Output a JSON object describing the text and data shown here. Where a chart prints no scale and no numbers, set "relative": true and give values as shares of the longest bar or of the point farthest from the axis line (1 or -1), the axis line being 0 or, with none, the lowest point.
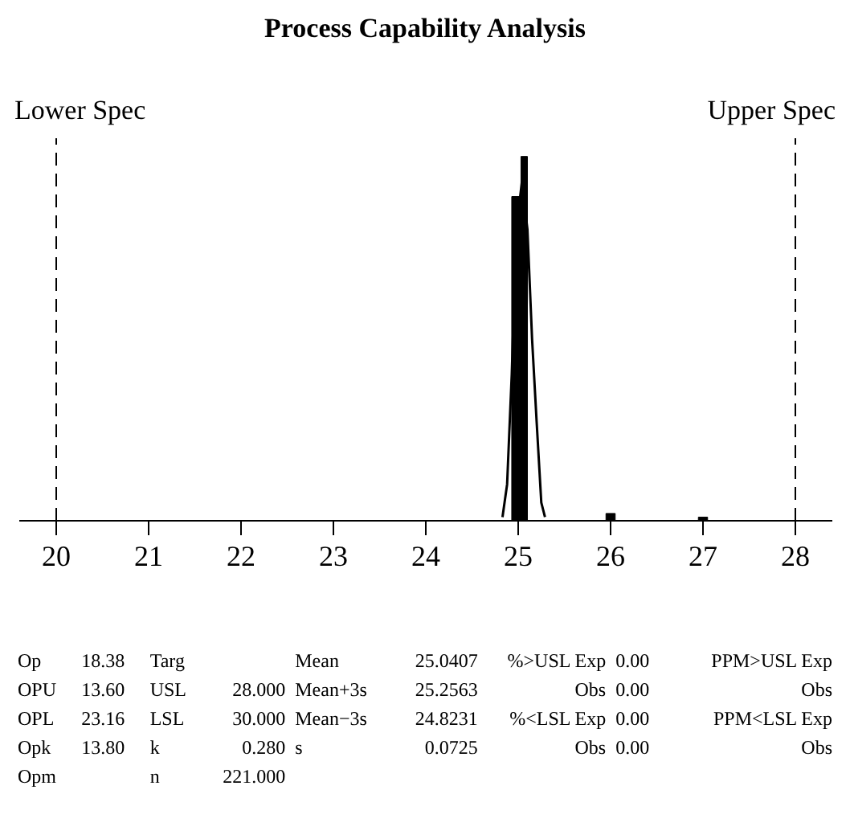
{
  "chart_data": {
    "type": "histogram",
    "title": "Process Capability Analysis",
    "relative": true,
    "xlim": [
      19.6,
      28.4
    ],
    "xticks": [
      20,
      21,
      22,
      23,
      24,
      25,
      26,
      27,
      28
    ],
    "series": [
      {
        "color": "#000000",
        "bins": [
          24.93,
          25.03,
          25.1,
          25.95,
          26.05,
          26.95,
          27.05
        ],
        "values": [
          0.89,
          1,
          0,
          0.02,
          0,
          0.01
        ]
      },
      {
        "type": "line",
        "color": "#000000",
        "x": [
          24.83,
          24.88,
          24.93,
          24.98,
          25.04,
          25.1,
          25.15,
          25.2,
          25.25,
          25.29
        ],
        "values": [
          0.01,
          0.1,
          0.4,
          0.8,
          0.93,
          0.8,
          0.5,
          0.27,
          0.05,
          0.01
        ]
      }
    ],
    "ref_lines": [
      {
        "axis": "x",
        "value": 20,
        "label": "Lower Spec",
        "line_style": "dashed",
        "color": "#000000"
      },
      {
        "axis": "x",
        "value": 28,
        "label": "Upper Spec",
        "line_style": "dashed",
        "color": "#000000"
      }
    ],
    "annotations": [
      "Op\t18.38\tTarg\t\tMean\t25.0407\t%>USL Exp\t0.00\tPPM>USL Exp",
      "OPU\t13.60\tUSL\t28.000\tMean+3s\t25.2563\tObs\t0.00\tObs",
      "OPL\t23.16\tLSL\t30.000\tMean−3s\t24.8231\t%<LSL Exp\t0.00\tPPM<LSL Exp",
      "Opk\t13.80\tk\t0.280\ts\t0.0725\tObs\t0.00\tObs",
      "Opm\t\tn\t221.000"
    ]
  }
}
